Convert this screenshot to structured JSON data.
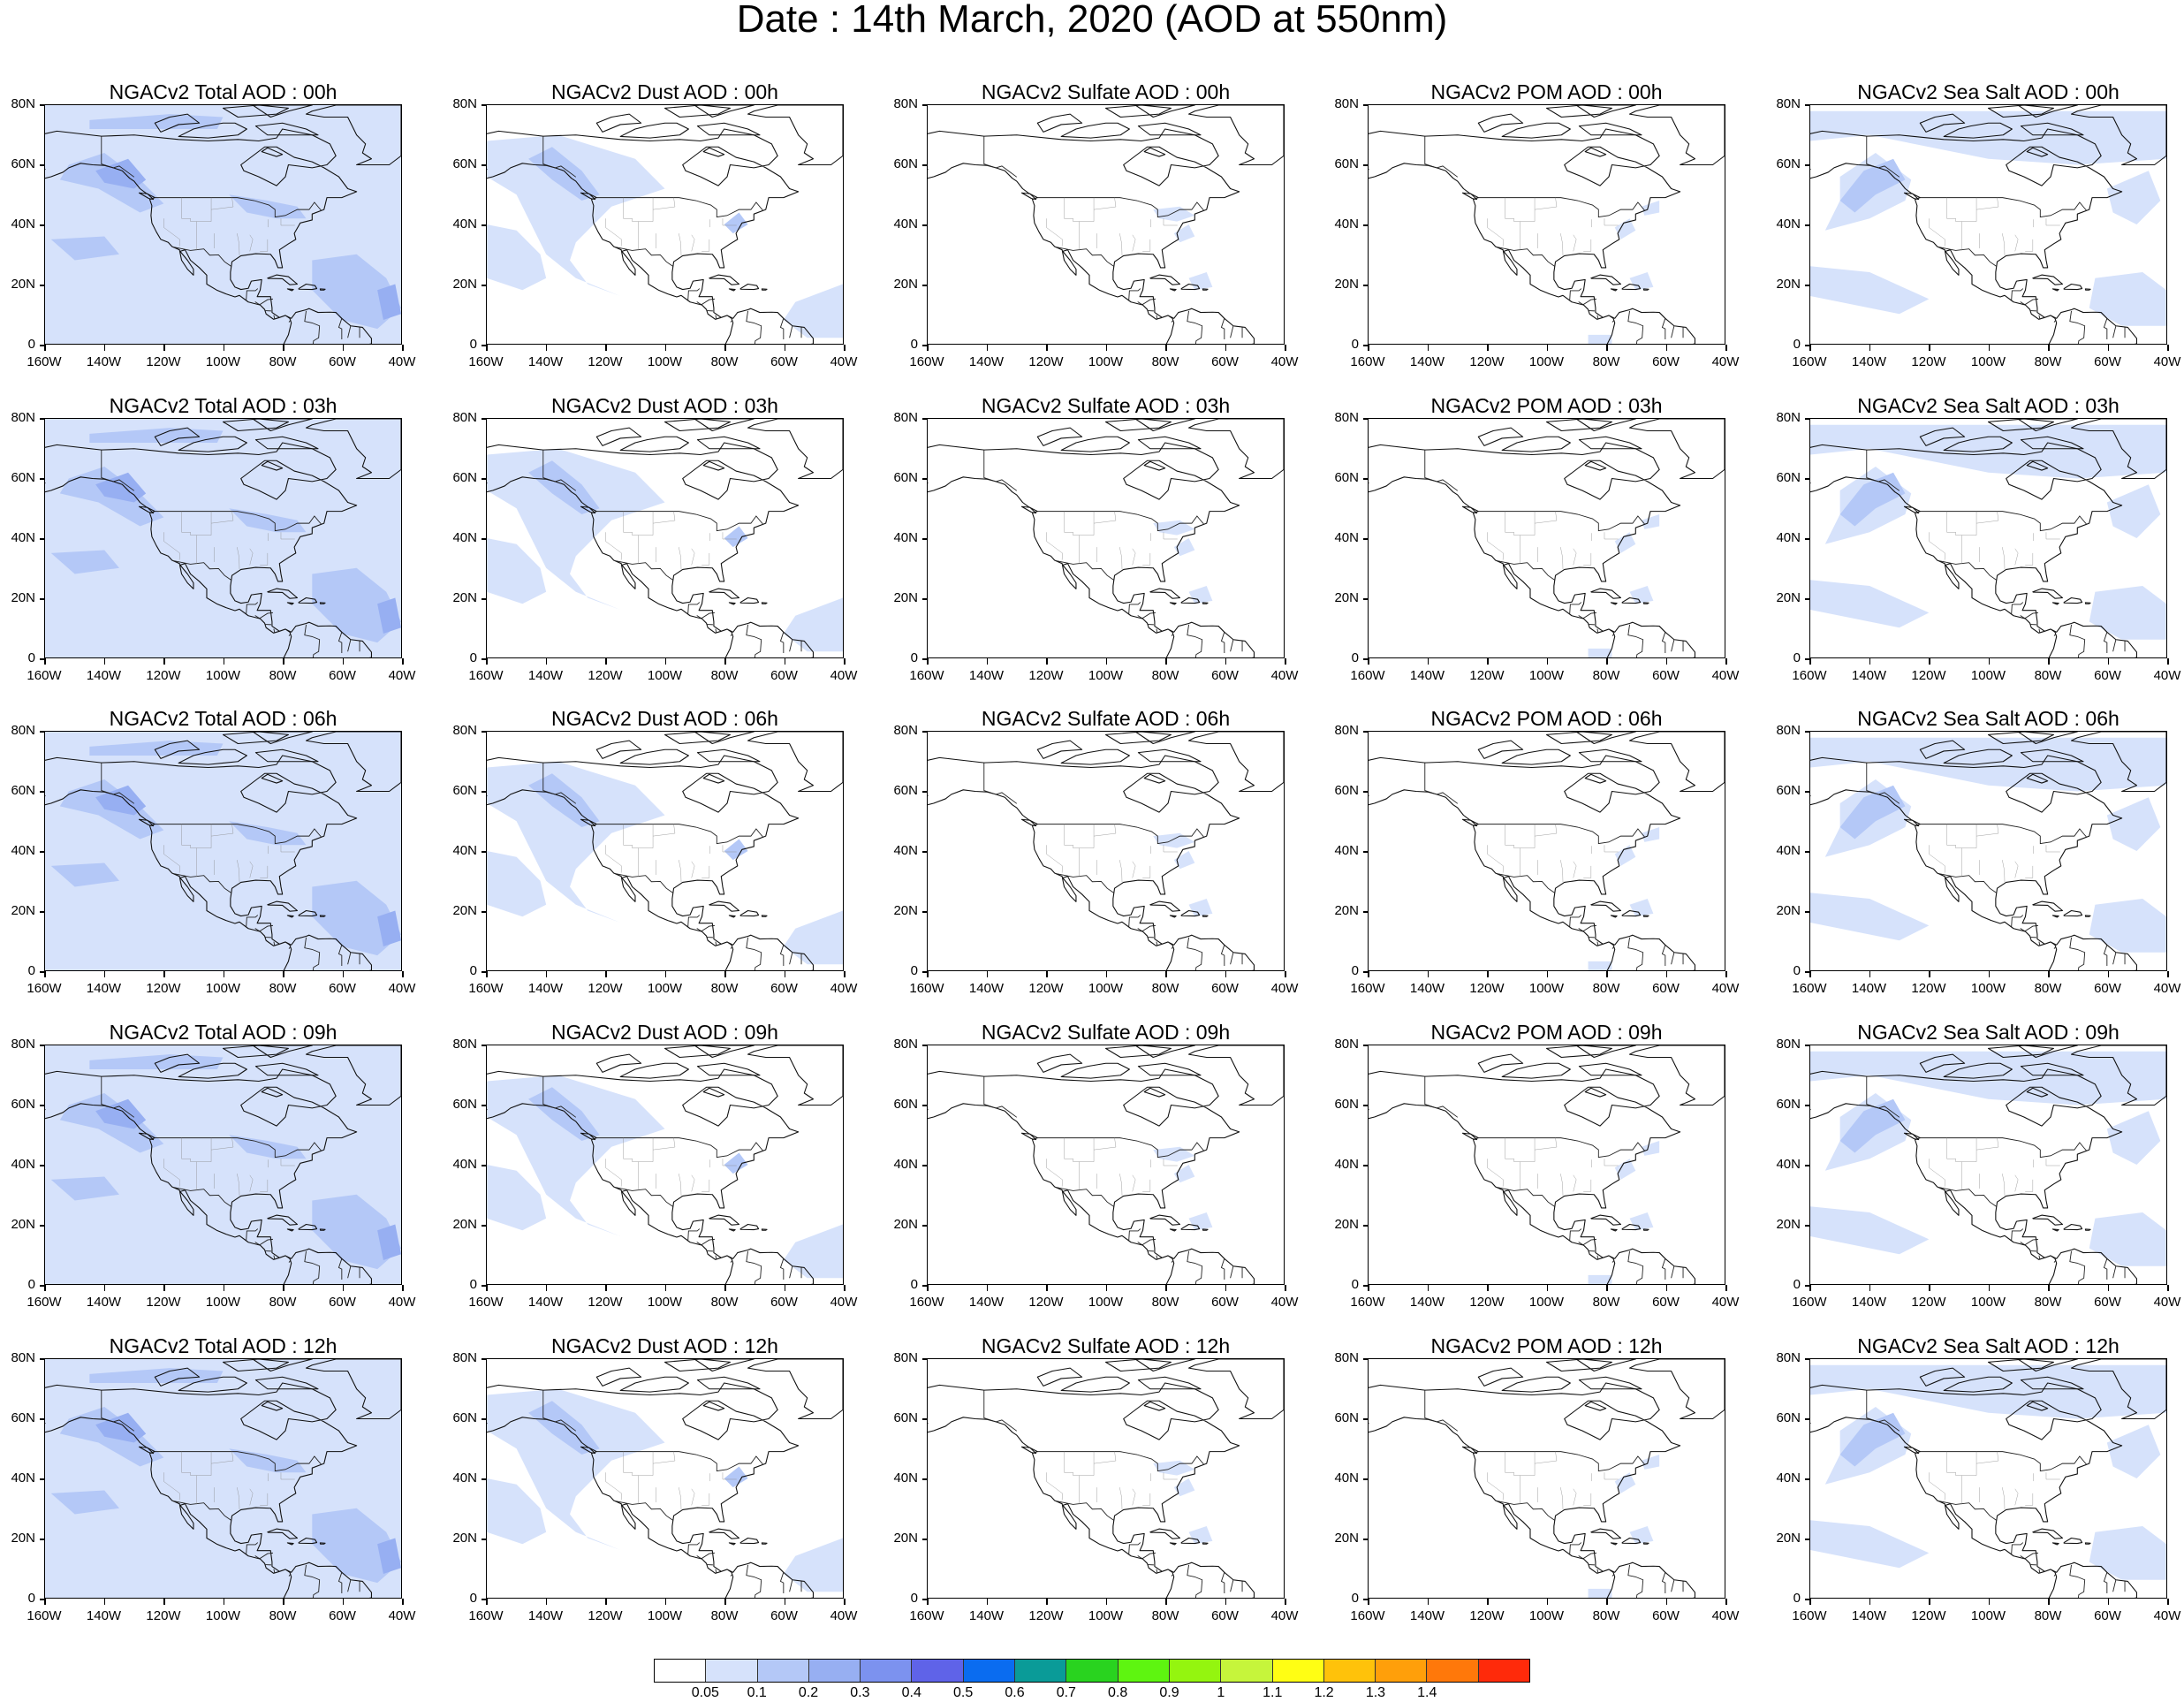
{
  "title": "Date : 14th March, 2020 (AOD at 550nm)",
  "axes": {
    "x_ticks": [
      "160W",
      "140W",
      "120W",
      "100W",
      "80W",
      "60W",
      "40W"
    ],
    "y_ticks": [
      "80N",
      "60N",
      "40N",
      "20N",
      "0"
    ]
  },
  "map_extent": {
    "lon": [
      -160,
      -40
    ],
    "lat": [
      0,
      80
    ]
  },
  "rows": [
    {
      "time": "00h",
      "panels": [
        {
          "species": "total",
          "title": "NGACv2 Total AOD : 00h"
        },
        {
          "species": "dust",
          "title": "NGACv2 Dust AOD : 00h"
        },
        {
          "species": "sulfate",
          "title": "NGACv2 Sulfate AOD : 00h"
        },
        {
          "species": "pom",
          "title": "NGACv2 POM AOD : 00h"
        },
        {
          "species": "seasalt",
          "title": "NGACv2 Sea Salt AOD : 00h"
        }
      ]
    },
    {
      "time": "03h",
      "panels": [
        {
          "species": "total",
          "title": "NGACv2 Total AOD : 03h"
        },
        {
          "species": "dust",
          "title": "NGACv2 Dust AOD : 03h"
        },
        {
          "species": "sulfate",
          "title": "NGACv2 Sulfate AOD : 03h"
        },
        {
          "species": "pom",
          "title": "NGACv2 POM AOD : 03h"
        },
        {
          "species": "seasalt",
          "title": "NGACv2 Sea Salt AOD : 03h"
        }
      ]
    },
    {
      "time": "06h",
      "panels": [
        {
          "species": "total",
          "title": "NGACv2 Total AOD : 06h"
        },
        {
          "species": "dust",
          "title": "NGACv2 Dust AOD : 06h"
        },
        {
          "species": "sulfate",
          "title": "NGACv2 Sulfate AOD : 06h"
        },
        {
          "species": "pom",
          "title": "NGACv2 POM AOD : 06h"
        },
        {
          "species": "seasalt",
          "title": "NGACv2 Sea Salt AOD : 06h"
        }
      ]
    },
    {
      "time": "09h",
      "panels": [
        {
          "species": "total",
          "title": "NGACv2 Total AOD : 09h"
        },
        {
          "species": "dust",
          "title": "NGACv2 Dust AOD : 09h"
        },
        {
          "species": "sulfate",
          "title": "NGACv2 Sulfate AOD : 09h"
        },
        {
          "species": "pom",
          "title": "NGACv2 POM AOD : 09h"
        },
        {
          "species": "seasalt",
          "title": "NGACv2 Sea Salt  AOD : 09h"
        }
      ]
    },
    {
      "time": "12h",
      "panels": [
        {
          "species": "total",
          "title": "NGACv2 Total AOD  : 12h"
        },
        {
          "species": "dust",
          "title": "NGACv2 Dust AOD : 12h"
        },
        {
          "species": "sulfate",
          "title": "NGACv2 Sulfate AOD : 12h"
        },
        {
          "species": "pom",
          "title": "NGACv2 POM  AOD : 12h"
        },
        {
          "species": "seasalt",
          "title": "NGACv2 Sea Salt  AOD : 12h"
        }
      ]
    }
  ],
  "colorbar": {
    "labels": [
      "0.05",
      "0.1",
      "0.2",
      "0.3",
      "0.4",
      "0.5",
      "0.6",
      "0.7",
      "0.8",
      "0.9",
      "1",
      "1.1",
      "1.2",
      "1.3",
      "1.4"
    ],
    "colors": [
      "#ffffff",
      "#d6e2fb",
      "#b4c8f7",
      "#97aff2",
      "#7c92ef",
      "#5f63e8",
      "#0a6cf0",
      "#0a9b98",
      "#29d31f",
      "#5ef510",
      "#94f50f",
      "#c6f53b",
      "#fffe14",
      "#ffc20a",
      "#ff9f0a",
      "#ff780a",
      "#ff2a0a"
    ]
  },
  "shading_colors": {
    "light": "#d6e2fb",
    "medium": "#b4c8f7",
    "strong": "#97aff2"
  }
}
